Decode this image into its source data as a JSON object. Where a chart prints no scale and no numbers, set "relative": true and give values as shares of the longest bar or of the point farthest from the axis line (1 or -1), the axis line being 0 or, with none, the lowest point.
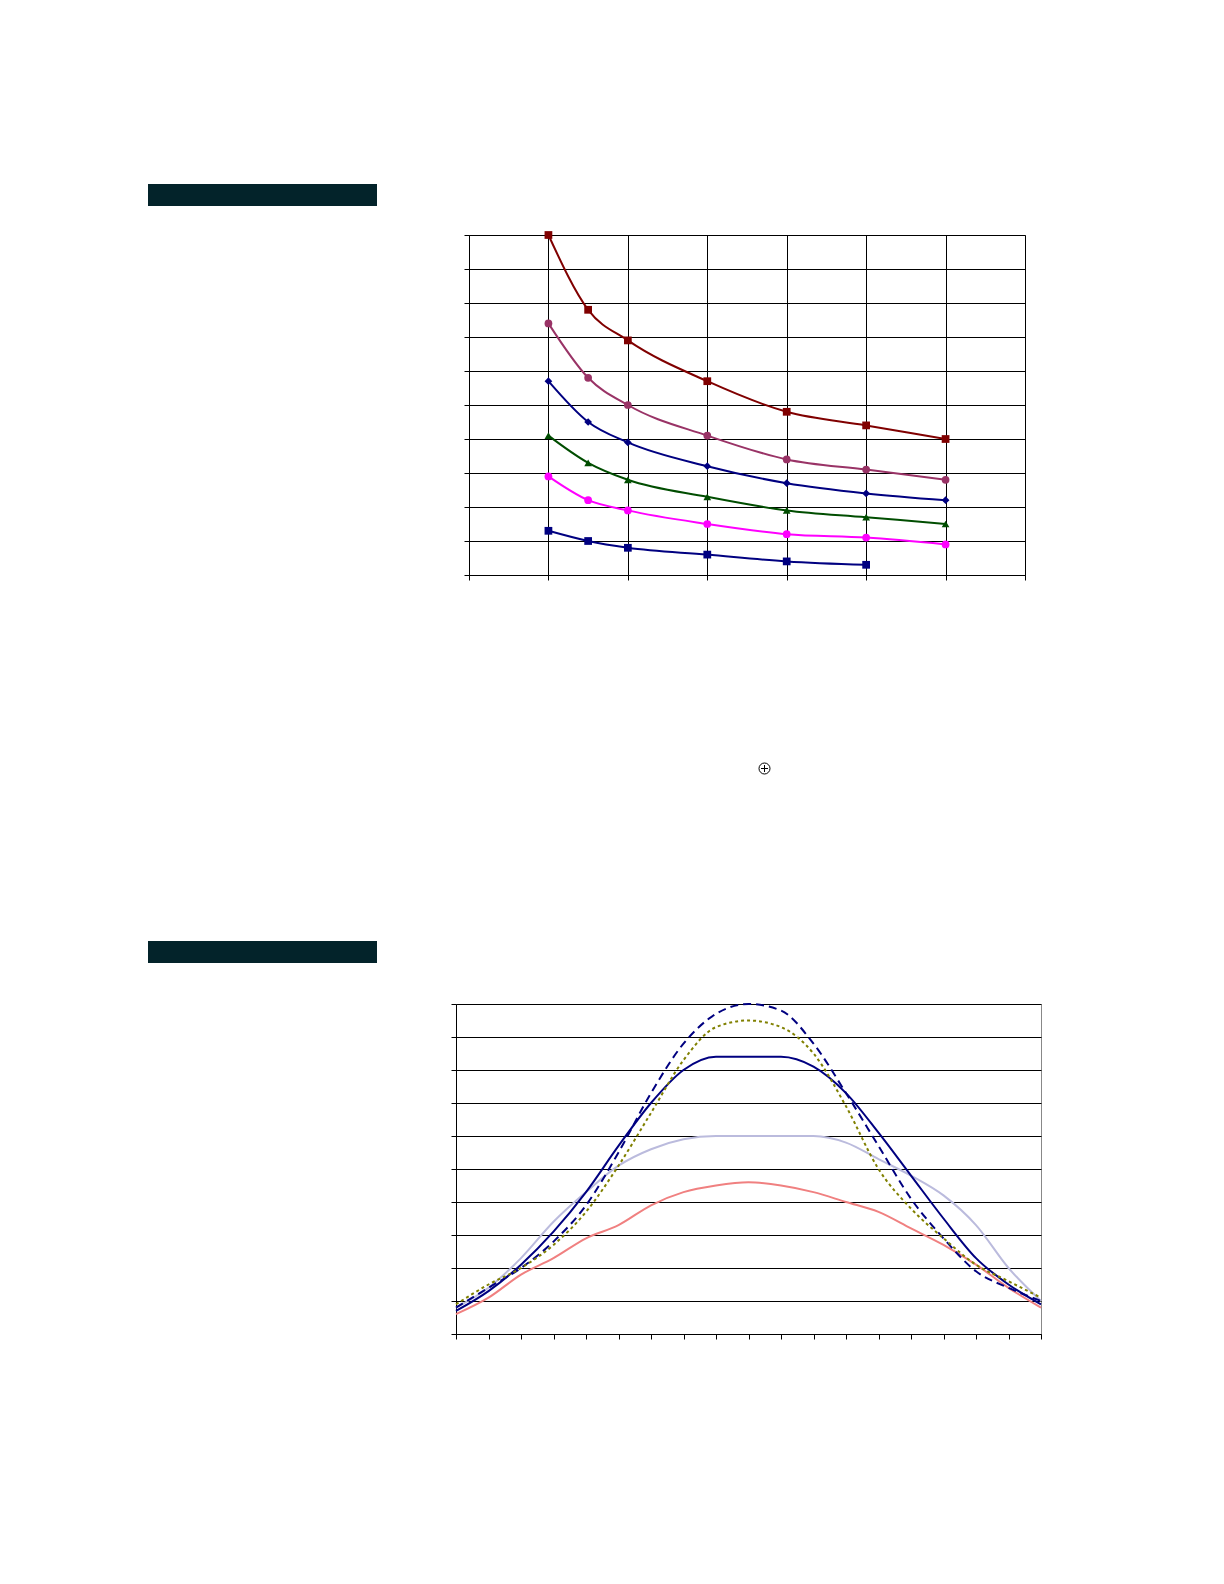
{
  "chart_data": [
    {
      "type": "line",
      "relative": true,
      "grid": true,
      "categories": [
        null,
        null,
        null,
        null,
        null,
        null,
        null,
        null,
        null,
        null,
        null,
        null,
        null,
        null,
        null
      ],
      "series": [
        {
          "color": "#000080",
          "marker": "square",
          "line_style": "solid",
          "values": [
            null,
            null,
            0.13,
            0.1,
            0.08,
            null,
            0.06,
            null,
            0.04,
            null,
            0.03,
            null,
            null,
            null,
            null
          ]
        },
        {
          "color": "#ff00ff",
          "marker": "circle",
          "line_style": "solid",
          "values": [
            null,
            null,
            0.29,
            0.22,
            0.19,
            null,
            0.15,
            null,
            0.12,
            null,
            0.11,
            null,
            0.09,
            null,
            null
          ]
        },
        {
          "color": "#004d00",
          "marker": "triangle",
          "line_style": "solid",
          "values": [
            null,
            null,
            0.41,
            0.33,
            0.28,
            null,
            0.23,
            null,
            0.19,
            null,
            0.17,
            null,
            0.15,
            null,
            null
          ]
        },
        {
          "color": "#000080",
          "marker": "diamond",
          "line_style": "solid",
          "values": [
            null,
            null,
            0.57,
            0.45,
            0.39,
            null,
            0.32,
            null,
            0.27,
            null,
            0.24,
            null,
            0.22,
            null,
            null
          ]
        },
        {
          "color": "#993366",
          "marker": "circle",
          "line_style": "solid",
          "values": [
            null,
            null,
            0.74,
            0.58,
            0.5,
            null,
            0.41,
            null,
            0.34,
            null,
            0.31,
            null,
            0.28,
            null,
            null
          ]
        },
        {
          "color": "#800000",
          "marker": "square",
          "line_style": "solid",
          "values": [
            null,
            null,
            1,
            0.78,
            0.69,
            null,
            0.57,
            null,
            0.48,
            null,
            0.44,
            null,
            0.4,
            null,
            null
          ]
        }
      ]
    },
    {
      "type": "line",
      "relative": true,
      "grid": "y",
      "marker": "none",
      "categories": [
        null,
        null,
        null,
        null,
        null,
        null,
        null,
        null,
        null,
        null,
        null,
        null,
        null,
        null,
        null,
        null,
        null,
        null,
        null
      ],
      "series": [
        {
          "color": "#f08080",
          "line_style": "solid",
          "values": [
            0.06,
            0.11,
            0.18,
            0.23,
            0.29,
            0.33,
            0.39,
            0.43,
            0.45,
            0.46,
            0.45,
            0.43,
            0.4,
            0.37,
            0.32,
            0.27,
            0.21,
            0.14,
            0.08
          ]
        },
        {
          "color": "#bbbbdd",
          "line_style": "solid",
          "values": [
            0.08,
            0.14,
            0.23,
            0.34,
            0.43,
            0.51,
            0.56,
            0.59,
            0.6,
            0.6,
            0.6,
            0.6,
            0.58,
            0.53,
            0.48,
            0.42,
            0.33,
            0.2,
            0.1
          ]
        },
        {
          "color": "#000080",
          "line_style": "solid",
          "values": [
            0.07,
            0.13,
            0.21,
            0.31,
            0.43,
            0.57,
            0.7,
            0.8,
            0.84,
            0.84,
            0.84,
            0.81,
            0.73,
            0.61,
            0.48,
            0.35,
            0.23,
            0.15,
            0.09
          ]
        },
        {
          "color": "#000080",
          "line_style": "dashed",
          "values": [
            0.08,
            0.14,
            0.2,
            0.28,
            0.39,
            0.55,
            0.73,
            0.88,
            0.97,
            1,
            0.98,
            0.88,
            0.73,
            0.57,
            0.41,
            0.29,
            0.19,
            0.14,
            0.1
          ]
        },
        {
          "color": "#808000",
          "line_style": "dotted",
          "values": [
            0.09,
            0.15,
            0.2,
            0.27,
            0.37,
            0.51,
            0.67,
            0.83,
            0.93,
            0.95,
            0.93,
            0.85,
            0.69,
            0.5,
            0.38,
            0.29,
            0.21,
            0.16,
            0.11
          ]
        }
      ]
    }
  ]
}
